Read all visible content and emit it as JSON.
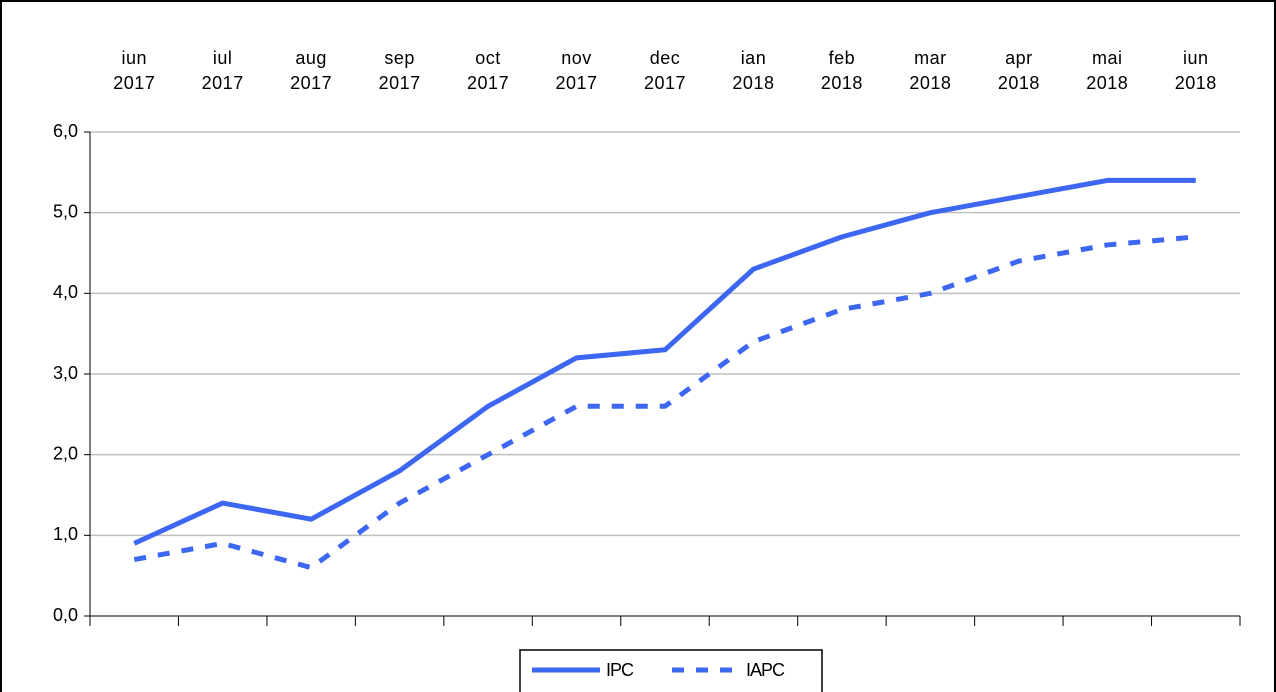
{
  "chart_data": {
    "type": "line",
    "categories": [
      "iun 2017",
      "iul 2017",
      "aug 2017",
      "sep 2017",
      "oct 2017",
      "nov 2017",
      "dec 2017",
      "ian 2018",
      "feb 2018",
      "mar 2018",
      "apr 2018",
      "mai 2018",
      "iun 2018"
    ],
    "series": [
      {
        "name": "IPC",
        "color": "#3d66f2",
        "dash": false,
        "values": [
          0.9,
          1.4,
          1.2,
          1.8,
          2.6,
          3.2,
          3.3,
          4.3,
          4.7,
          5.0,
          5.2,
          5.4,
          5.4
        ]
      },
      {
        "name": "IAPC",
        "color": "#3d66f2",
        "dash": true,
        "values": [
          0.7,
          0.9,
          0.6,
          1.4,
          2.0,
          2.6,
          2.6,
          3.4,
          3.8,
          4.0,
          4.4,
          4.6,
          4.7
        ]
      }
    ],
    "ylim": [
      0,
      6
    ],
    "yticks": [
      {
        "value": 0,
        "label": "0,0"
      },
      {
        "value": 1,
        "label": "1,0"
      },
      {
        "value": 2,
        "label": "2,0"
      },
      {
        "value": 3,
        "label": "3,0"
      },
      {
        "value": 4,
        "label": "4,0"
      },
      {
        "value": 5,
        "label": "5,0"
      },
      {
        "value": 6,
        "label": "6,0"
      }
    ],
    "grid": true,
    "legend": "bottom",
    "category_axis": "top"
  }
}
